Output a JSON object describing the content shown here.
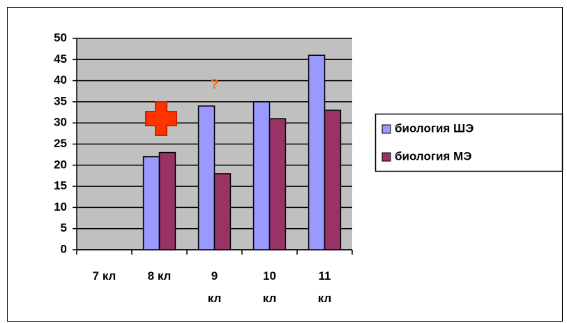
{
  "chart_data": {
    "type": "bar",
    "categories": [
      "7 кл",
      "8 кл",
      "9 кл",
      "10 кл",
      "11 кл"
    ],
    "series": [
      {
        "name": "биология ШЭ",
        "color": "#9999ff",
        "values": [
          null,
          22,
          34,
          35,
          46
        ]
      },
      {
        "name": "биология МЭ",
        "color": "#993366",
        "values": [
          null,
          23,
          18,
          31,
          33
        ]
      }
    ],
    "ylim": [
      0,
      50
    ],
    "yticks": [
      0,
      5,
      10,
      15,
      20,
      25,
      30,
      35,
      40,
      45,
      50
    ],
    "grid": true,
    "plot_background": "#c0c0c0",
    "legend": "right",
    "annotations": [
      {
        "text": "?",
        "x": "9 кл",
        "y": 39,
        "color": "#ff6600"
      }
    ]
  }
}
